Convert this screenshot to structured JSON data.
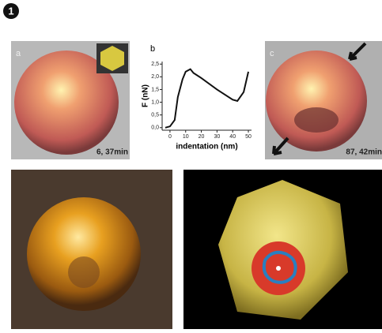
{
  "badge": "1",
  "panels": {
    "a": {
      "label": "a",
      "caption": "6, 37min"
    },
    "c": {
      "label": "c",
      "caption": "87, 42min"
    }
  },
  "chart_data": {
    "type": "line",
    "label": "b",
    "x_label": "indentation (nm)",
    "y_label": "F (nN)",
    "x": [
      -3,
      0,
      3,
      5,
      8,
      10,
      13,
      15,
      20,
      30,
      40,
      43,
      47,
      50
    ],
    "values": [
      0,
      0.05,
      0.3,
      1.2,
      1.9,
      2.2,
      2.3,
      2.15,
      1.95,
      1.5,
      1.1,
      1.05,
      1.4,
      2.2
    ],
    "color": "#111111",
    "xlim": [
      -5,
      52
    ],
    "ylim": [
      -0.1,
      2.6
    ],
    "xticks": [
      0,
      10,
      20,
      30,
      40,
      50
    ],
    "yticks": [
      {
        "value": 0,
        "label": "0,0"
      },
      {
        "value": 0.5,
        "label": "0,5"
      },
      {
        "value": 1,
        "label": "1,0"
      },
      {
        "value": 1.5,
        "label": "1,5"
      },
      {
        "value": 2,
        "label": "2,0"
      },
      {
        "value": 2.5,
        "label": "2,5"
      }
    ]
  }
}
